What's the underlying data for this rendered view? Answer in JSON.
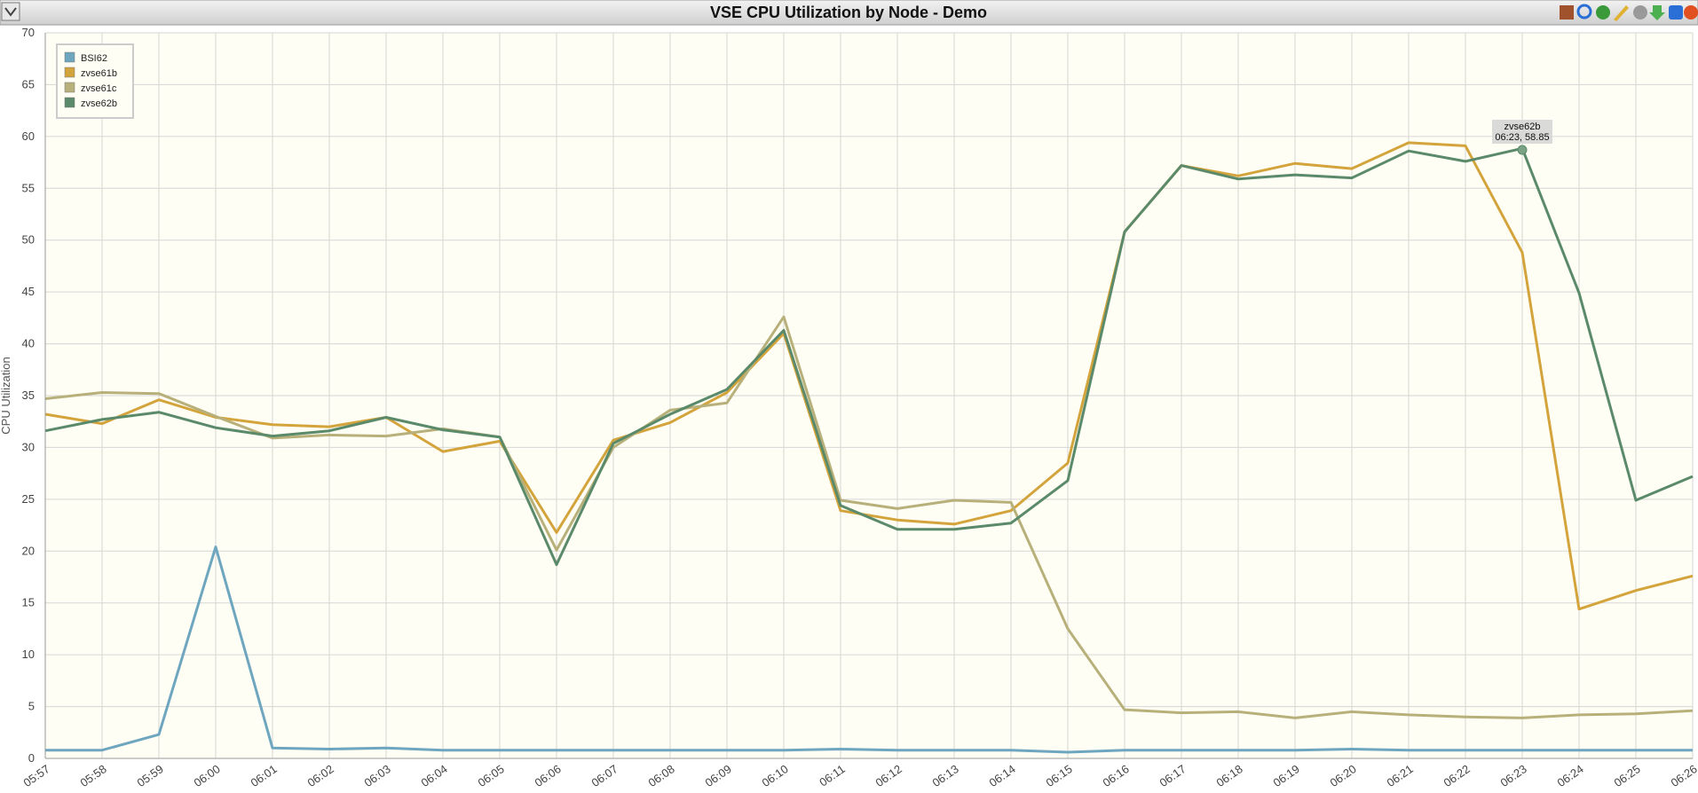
{
  "chart_data": {
    "type": "line",
    "title": "VSE CPU Utilization by Node - Demo",
    "y_label": "CPU Utilization",
    "categories": [
      "05:57",
      "05:58",
      "05:59",
      "06:00",
      "06:01",
      "06:02",
      "06:03",
      "06:04",
      "06:05",
      "06:06",
      "06:07",
      "06:08",
      "06:09",
      "06:10",
      "06:11",
      "06:12",
      "06:13",
      "06:14",
      "06:15",
      "06:16",
      "06:17",
      "06:18",
      "06:19",
      "06:20",
      "06:21",
      "06:22",
      "06:23",
      "06:24",
      "06:25",
      "06:26"
    ],
    "series": [
      {
        "name": "BSI62",
        "color": "#6ea6c0",
        "values": [
          0.8,
          0.8,
          2.3,
          20.4,
          1.0,
          0.9,
          1.0,
          0.8,
          0.8,
          0.8,
          0.8,
          0.8,
          0.8,
          0.8,
          0.9,
          0.8,
          0.8,
          0.8,
          0.6,
          0.8,
          0.8,
          0.8,
          0.8,
          0.9,
          0.8,
          0.8,
          0.8,
          0.8,
          0.8,
          0.8
        ]
      },
      {
        "name": "zvse61b",
        "color": "#d4a43c",
        "values": [
          33.2,
          32.3,
          34.6,
          32.9,
          32.2,
          32.0,
          32.9,
          29.6,
          30.6,
          21.8,
          30.7,
          32.4,
          35.3,
          41.0,
          23.9,
          23.0,
          22.6,
          23.9,
          28.5,
          50.8,
          57.2,
          56.2,
          57.4,
          56.9,
          59.4,
          59.1,
          48.8,
          14.4,
          16.2,
          17.6
        ]
      },
      {
        "name": "zvse61c",
        "color": "#b8b07a",
        "values": [
          34.7,
          35.3,
          35.2,
          33.0,
          30.9,
          31.2,
          31.1,
          31.8,
          31.0,
          20.1,
          30.0,
          33.6,
          34.3,
          42.6,
          24.9,
          24.1,
          24.9,
          24.7,
          12.5,
          4.7,
          4.4,
          4.5,
          3.9,
          4.5,
          4.2,
          4.0,
          3.9,
          4.2,
          4.3,
          4.6
        ]
      },
      {
        "name": "zvse62b",
        "color": "#5a8a6a",
        "values": [
          31.6,
          32.7,
          33.4,
          31.9,
          31.1,
          31.6,
          32.9,
          31.7,
          31.0,
          18.7,
          30.4,
          33.2,
          35.6,
          41.3,
          24.4,
          22.1,
          22.1,
          22.7,
          26.8,
          50.8,
          57.2,
          55.9,
          56.3,
          56.0,
          58.6,
          57.6,
          58.85,
          44.9,
          24.9,
          27.2
        ]
      }
    ],
    "ylim": [
      0,
      70
    ],
    "yticks": [
      0,
      5,
      10,
      15,
      20,
      25,
      30,
      35,
      40,
      45,
      50,
      55,
      60,
      65,
      70
    ],
    "grid": true,
    "legend": "top-left",
    "tooltip": {
      "series": "zvse62b",
      "text": "06:23, 58.85"
    }
  }
}
